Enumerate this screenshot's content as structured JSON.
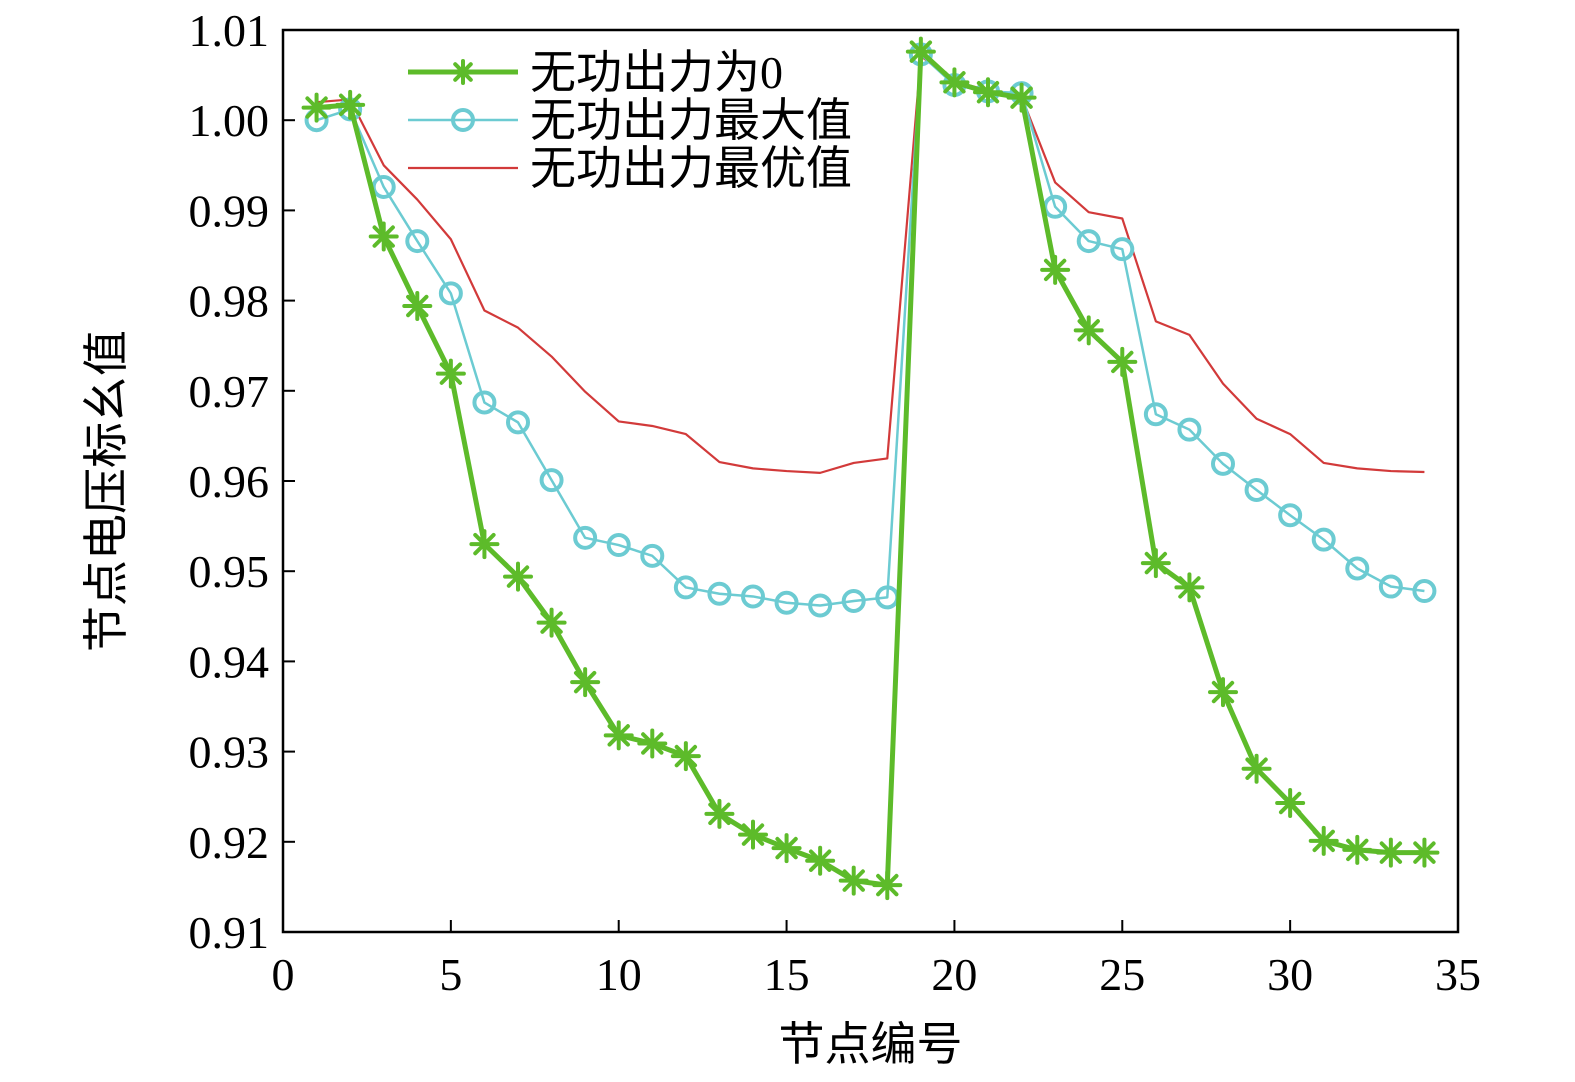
{
  "chart_data": {
    "type": "line",
    "xlabel": "节点编号",
    "ylabel": "节点电压标幺值",
    "xlim": [
      0,
      35
    ],
    "ylim": [
      0.91,
      1.01
    ],
    "x_ticks": [
      0,
      5,
      10,
      15,
      20,
      25,
      30,
      35
    ],
    "y_ticks": [
      0.91,
      0.92,
      0.93,
      0.94,
      0.95,
      0.96,
      0.97,
      0.98,
      0.99,
      1.0,
      1.01
    ],
    "x_tick_labels": [
      "0",
      "5",
      "10",
      "15",
      "20",
      "25",
      "30",
      "35"
    ],
    "y_tick_labels": [
      "0.91",
      "0.92",
      "0.93",
      "0.94",
      "0.95",
      "0.96",
      "0.97",
      "0.98",
      "0.99",
      "1.00",
      "1.01"
    ],
    "grid": false,
    "legend_position": "top-left",
    "series": [
      {
        "name": "无功出力为0",
        "color": "#5dbb2a",
        "marker": "asterisk",
        "x": [
          1,
          2,
          3,
          4,
          5,
          6,
          7,
          8,
          9,
          10,
          11,
          12,
          13,
          14,
          15,
          16,
          17,
          18,
          19,
          20,
          21,
          22,
          23,
          24,
          25,
          26,
          27,
          28,
          29,
          30,
          31,
          32,
          33,
          34
        ],
        "y": [
          1.0014,
          1.0017,
          0.9871,
          0.9794,
          0.9719,
          0.953,
          0.9494,
          0.9443,
          0.9377,
          0.9318,
          0.9309,
          0.9295,
          0.9231,
          0.9208,
          0.9193,
          0.9179,
          0.9157,
          0.9152,
          1.0076,
          1.0042,
          1.0031,
          1.0025,
          0.9834,
          0.9767,
          0.9732,
          0.9509,
          0.9482,
          0.9366,
          0.9281,
          0.9243,
          0.9201,
          0.9191,
          0.9188,
          0.9188
        ]
      },
      {
        "name": "无功出力最大值",
        "color": "#6ccbd2",
        "marker": "circle",
        "x": [
          1,
          2,
          3,
          4,
          5,
          6,
          7,
          8,
          9,
          10,
          11,
          12,
          13,
          14,
          15,
          16,
          17,
          18,
          19,
          20,
          21,
          22,
          23,
          24,
          25,
          26,
          27,
          28,
          29,
          30,
          31,
          32,
          33,
          34
        ],
        "y": [
          1.0,
          1.0012,
          0.9926,
          0.9866,
          0.9808,
          0.9687,
          0.9665,
          0.9601,
          0.9537,
          0.9529,
          0.9517,
          0.9482,
          0.9475,
          0.9472,
          0.9465,
          0.9462,
          0.9467,
          0.9471,
          1.0073,
          1.0039,
          1.0032,
          1.003,
          0.9904,
          0.9866,
          0.9857,
          0.9674,
          0.9657,
          0.9619,
          0.959,
          0.9562,
          0.9535,
          0.9503,
          0.9483,
          0.9478
        ]
      },
      {
        "name": "无功出力最优值",
        "color": "#d23a3a",
        "marker": "none",
        "x": [
          1,
          2,
          3,
          4,
          5,
          6,
          7,
          8,
          9,
          10,
          11,
          12,
          13,
          14,
          15,
          16,
          17,
          18,
          19,
          20,
          21,
          22,
          23,
          24,
          25,
          26,
          27,
          28,
          29,
          30,
          31,
          32,
          33,
          34
        ],
        "y": [
          1.002,
          1.0023,
          0.995,
          0.9912,
          0.9868,
          0.9789,
          0.977,
          0.9738,
          0.9699,
          0.9666,
          0.9661,
          0.9652,
          0.9621,
          0.9614,
          0.9611,
          0.9609,
          0.962,
          0.9625,
          1.0071,
          1.0043,
          1.0033,
          1.0026,
          0.9931,
          0.9898,
          0.9891,
          0.9777,
          0.9762,
          0.9708,
          0.9669,
          0.9652,
          0.962,
          0.9614,
          0.9611,
          0.961
        ]
      }
    ]
  }
}
